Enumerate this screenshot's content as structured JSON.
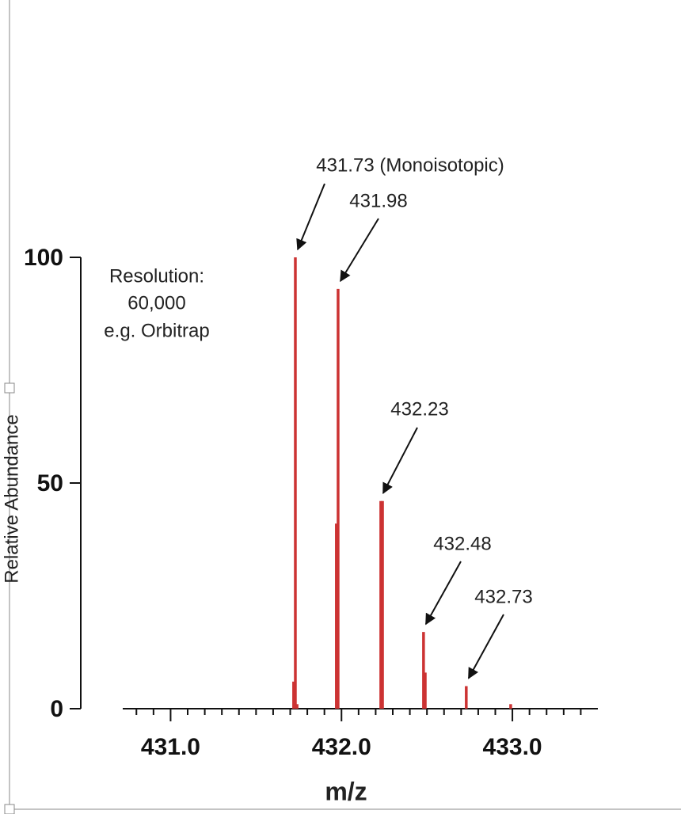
{
  "chart_data": {
    "type": "stem",
    "y_label": "Relative Abundance",
    "x_label": "m/z",
    "x": [
      431.72,
      431.73,
      431.74,
      431.97,
      431.98,
      432.23,
      432.24,
      432.48,
      432.49,
      432.73,
      432.99
    ],
    "values": [
      6,
      100,
      1,
      41,
      93,
      46,
      46,
      17,
      8,
      5,
      1
    ],
    "color": "#cc3333",
    "xlim": [
      430.72,
      433.5
    ],
    "xticks": [
      {
        "value": 431,
        "label": "431.0"
      },
      {
        "value": 432,
        "label": "432.0"
      },
      {
        "value": 433,
        "label": "433.0"
      }
    ],
    "xminorticks": [
      430.8,
      430.9,
      431.1,
      431.2,
      431.3,
      431.4,
      431.5,
      431.6,
      431.7,
      431.8,
      431.9,
      432.1,
      432.2,
      432.3,
      432.4,
      432.5,
      432.6,
      432.7,
      432.8,
      432.9,
      433.1,
      433.2,
      433.3,
      433.4
    ],
    "ylim": [
      0,
      100
    ],
    "yticks": [
      0,
      50,
      100
    ],
    "notes": [
      "Resolution:",
      "60,000",
      "e.g. Orbitrap"
    ],
    "annotations": [
      "431.73 (Monoisotopic)",
      "431.98",
      "432.23",
      "432.48",
      "432.73"
    ]
  }
}
